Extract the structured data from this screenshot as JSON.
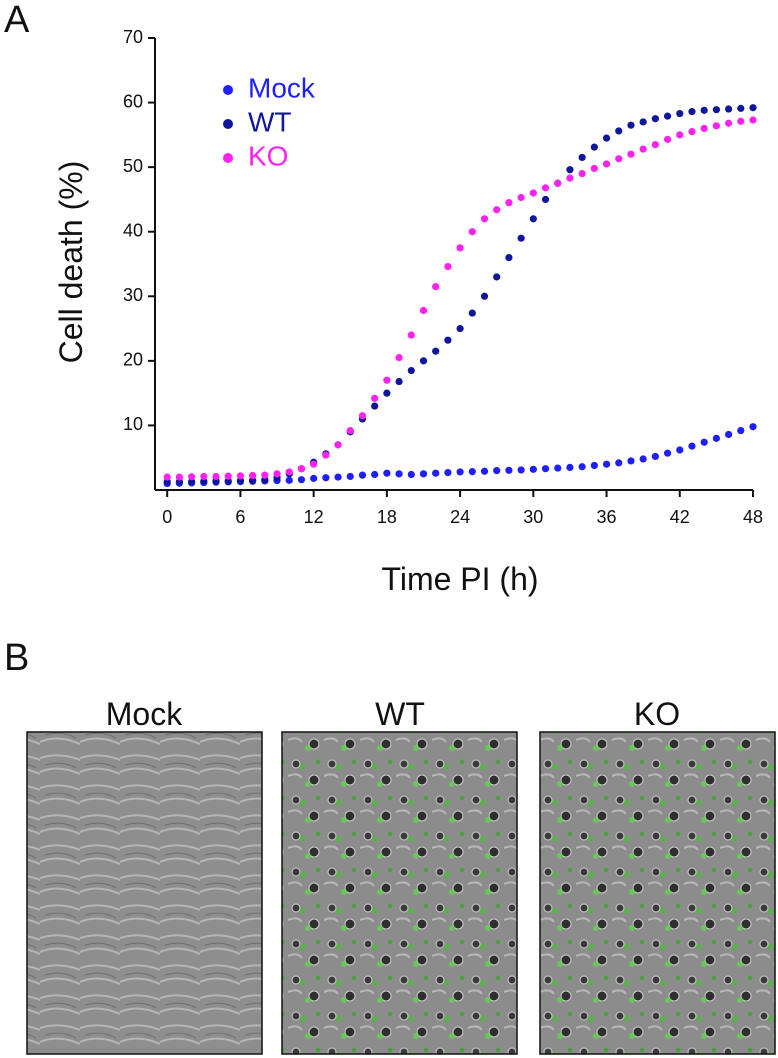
{
  "panel_labels": [
    "A",
    "B"
  ],
  "chart_data": {
    "type": "scatter",
    "x_label": "Time PI (h)",
    "y_label": "Cell death (%)",
    "x": [
      0,
      1,
      2,
      3,
      4,
      5,
      6,
      7,
      8,
      9,
      10,
      11,
      12,
      13,
      14,
      15,
      16,
      17,
      18,
      19,
      20,
      21,
      22,
      23,
      24,
      25,
      26,
      27,
      28,
      29,
      30,
      31,
      32,
      33,
      34,
      35,
      36,
      37,
      38,
      39,
      40,
      41,
      42,
      43,
      44,
      45,
      46,
      47,
      48
    ],
    "series": [
      {
        "name": "Mock",
        "color": "#1e1eff",
        "values": [
          1.0,
          1.05,
          1.1,
          1.15,
          1.2,
          1.25,
          1.3,
          1.35,
          1.4,
          1.45,
          1.5,
          1.6,
          1.8,
          1.9,
          2.0,
          2.1,
          2.3,
          2.4,
          2.6,
          2.5,
          2.4,
          2.5,
          2.6,
          2.7,
          2.8,
          2.85,
          2.9,
          3.0,
          3.05,
          3.1,
          3.2,
          3.3,
          3.4,
          3.5,
          3.6,
          3.8,
          4.0,
          4.2,
          4.5,
          4.8,
          5.2,
          5.7,
          6.2,
          6.8,
          7.4,
          8.0,
          8.6,
          9.2,
          9.8
        ]
      },
      {
        "name": "WT",
        "color": "#10169c",
        "values": [
          1.3,
          1.3,
          1.3,
          1.35,
          1.4,
          1.4,
          1.45,
          1.5,
          1.6,
          1.9,
          2.5,
          3.3,
          4.3,
          5.6,
          7.0,
          9.0,
          11.0,
          13.0,
          15.0,
          16.8,
          18.5,
          20.0,
          21.5,
          23.2,
          25.0,
          27.4,
          30.0,
          33.0,
          36.0,
          39.0,
          42.0,
          45.0,
          47.5,
          49.6,
          51.5,
          53.1,
          54.5,
          55.6,
          56.5,
          57.0,
          57.5,
          57.9,
          58.3,
          58.6,
          58.8,
          58.9,
          59.0,
          59.1,
          59.2
        ]
      },
      {
        "name": "KO",
        "color": "#ff22ee",
        "values": [
          2.0,
          2.0,
          2.05,
          2.1,
          2.1,
          2.15,
          2.2,
          2.25,
          2.3,
          2.5,
          2.8,
          3.3,
          4.0,
          5.4,
          7.0,
          9.2,
          11.5,
          14.2,
          17.0,
          20.5,
          24.0,
          27.8,
          31.5,
          34.6,
          37.5,
          40.0,
          42.0,
          43.4,
          44.5,
          45.3,
          46.0,
          46.8,
          47.5,
          48.3,
          49.0,
          49.8,
          50.5,
          51.3,
          52.0,
          52.8,
          53.5,
          54.3,
          55.0,
          55.5,
          56.0,
          56.4,
          56.8,
          57.1,
          57.3
        ]
      }
    ],
    "xlim": [
      -1,
      48
    ],
    "xticks": [
      0,
      6,
      12,
      18,
      24,
      30,
      36,
      42,
      48
    ],
    "ylim": [
      0,
      70
    ],
    "yticks": [
      10,
      20,
      30,
      40,
      50,
      60,
      70
    ],
    "legend": "upper left"
  },
  "images": [
    {
      "title": "Mock"
    },
    {
      "title": "WT"
    },
    {
      "title": "KO"
    }
  ]
}
